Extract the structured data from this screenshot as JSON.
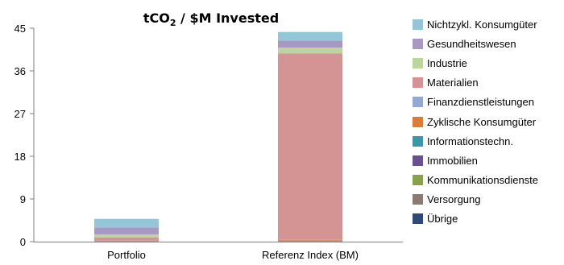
{
  "chart_data": {
    "type": "bar",
    "stacked": true,
    "title": "tCO",
    "title_subscript": "2",
    "title_suffix": " / $M Invested",
    "xlabel": "",
    "ylabel": "",
    "ylim": [
      0,
      45
    ],
    "yticks": [
      "0",
      "9",
      "18",
      "27",
      "36",
      "45"
    ],
    "categories": [
      "Portfolio",
      "Referenz Index (BM)"
    ],
    "legend_position": "right",
    "grid": false,
    "series": [
      {
        "name": "Übrige",
        "color": "#2e4a7a",
        "values": [
          0.0,
          0.0
        ]
      },
      {
        "name": "Versorgung",
        "color": "#8c7b70",
        "values": [
          0.0,
          0.0
        ]
      },
      {
        "name": "Kommunikationsdienste",
        "color": "#86a34a",
        "values": [
          0.0,
          0.1
        ]
      },
      {
        "name": "Immobilien",
        "color": "#6b4f93",
        "values": [
          0.0,
          0.0
        ]
      },
      {
        "name": "Informationstechn.",
        "color": "#3a98aa",
        "values": [
          0.0,
          0.0
        ]
      },
      {
        "name": "Zyklische Konsumgüter",
        "color": "#e07b36",
        "values": [
          0.1,
          0.2
        ]
      },
      {
        "name": "Finanzdienstleistungen",
        "color": "#93a9d1",
        "values": [
          0.1,
          0.1
        ]
      },
      {
        "name": "Materialien",
        "color": "#d49494",
        "values": [
          0.7,
          39.3
        ]
      },
      {
        "name": "Industrie",
        "color": "#bcd59a",
        "values": [
          0.6,
          1.2
        ]
      },
      {
        "name": "Gesundheitswesen",
        "color": "#a898c4",
        "values": [
          1.5,
          1.5
        ]
      },
      {
        "name": "Nichtzykl. Konsumgüter",
        "color": "#93c6d8",
        "values": [
          1.8,
          1.8
        ]
      }
    ]
  }
}
